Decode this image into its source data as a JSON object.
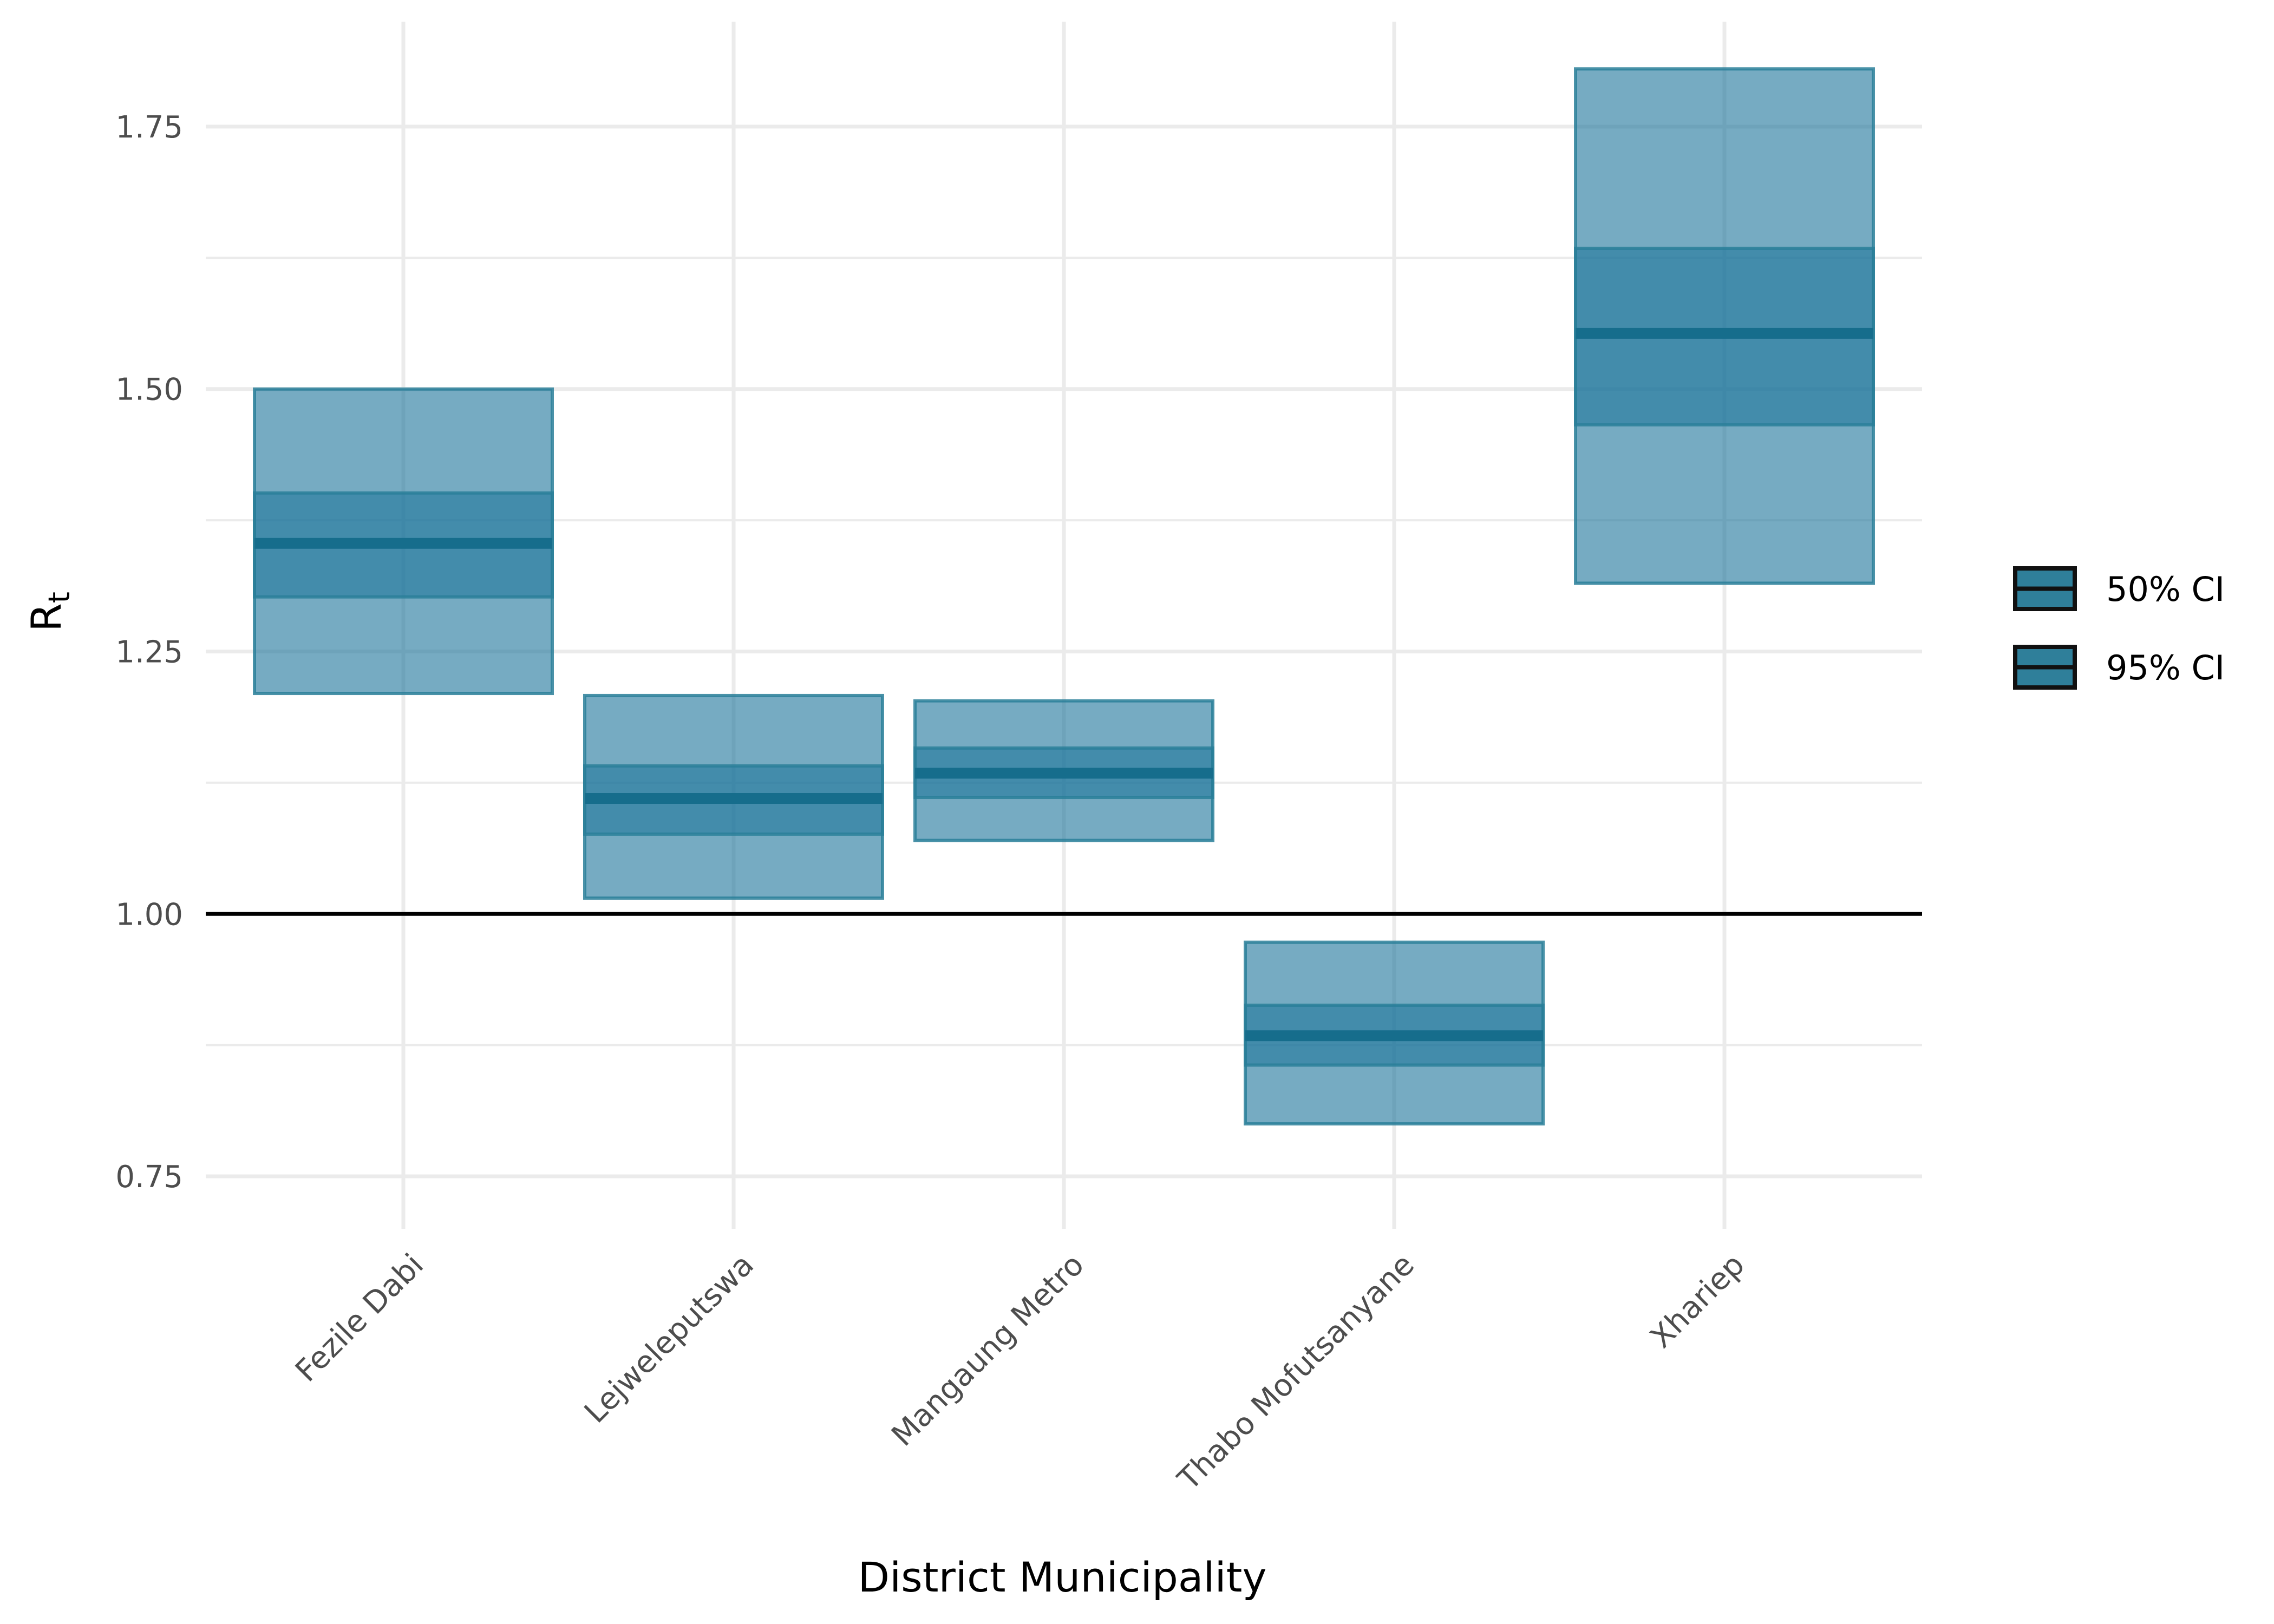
{
  "chart_data": {
    "type": "crossbar",
    "title": "",
    "xlabel": "District Municipality",
    "ylabel": "R",
    "ylabel_subscript": "t",
    "ylim": [
      0.7,
      1.85
    ],
    "y_ticks": [
      0.75,
      1.0,
      1.25,
      1.5,
      1.75
    ],
    "y_tick_labels": [
      "0.75",
      "1.00",
      "1.25",
      "1.50",
      "1.75"
    ],
    "reference_line": 1.0,
    "grid": true,
    "legend_position": "right",
    "legend": [
      {
        "label": "50% CI"
      },
      {
        "label": "95% CI"
      }
    ],
    "categories": [
      "Fezile Dabi",
      "Lejweleputswa",
      "Mangaung Metro",
      "Thabo Mofutsanyane",
      "Xhariep"
    ],
    "ci95_lower": [
      1.21,
      1.015,
      1.07,
      0.8,
      1.315
    ],
    "ci95_upper": [
      1.5,
      1.208,
      1.203,
      0.973,
      1.805
    ],
    "ci50_lower": [
      1.302,
      1.076,
      1.111,
      0.856,
      1.466
    ],
    "ci50_upper": [
      1.401,
      1.141,
      1.158,
      0.913,
      1.634
    ],
    "median": [
      1.353,
      1.11,
      1.134,
      0.884,
      1.553
    ],
    "colors": {
      "fill": "#1a7399",
      "stroke": "#2a7f99",
      "median": "#166d8c",
      "legend_fill": "#2f7f9a",
      "reference_line": "#000000",
      "grid": "#ebebeb"
    }
  }
}
